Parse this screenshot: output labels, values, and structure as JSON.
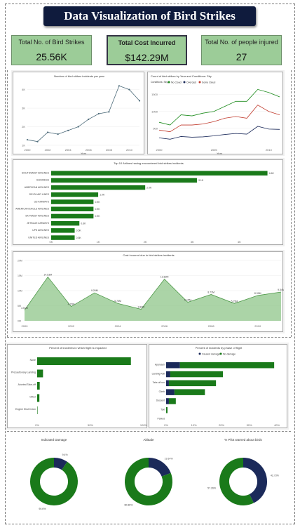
{
  "title": "Data Visualization of Bird Strikes",
  "kpis": [
    {
      "label": "Total No. of Bird Strikes",
      "value": "25.56K"
    },
    {
      "label": "Total Cost Incurred",
      "value": "$142.29M"
    },
    {
      "label": "Total No. of people injured",
      "value": "27"
    }
  ],
  "colors": {
    "header": "#0f1b3d",
    "kpi_bg": "#9ccc98",
    "green": "#1a7a1a",
    "navy": "#1b2a5a",
    "red": "#c0392b",
    "slate": "#4d6b7a",
    "area": "#8fc58a"
  },
  "chart_data": [
    {
      "id": "incidents_per_year",
      "type": "line",
      "title": "Number of bird strikes incidents per year",
      "xlabel": "Year",
      "ylabel": "",
      "x": [
        2000,
        2001,
        2002,
        2003,
        2004,
        2005,
        2006,
        2007,
        2008,
        2009,
        2010,
        2011
      ],
      "values": [
        1.3,
        1.2,
        1.7,
        1.6,
        1.8,
        2.0,
        2.4,
        2.7,
        2.8,
        4.2,
        4.0,
        3.4
      ],
      "xticks": [
        "2000",
        "2002",
        "2004",
        "2006",
        "2008",
        "2010"
      ],
      "yticks": [
        "1K",
        "2K",
        "3K",
        "4K"
      ],
      "ylim": [
        1,
        4.4
      ]
    },
    {
      "id": "by_conditions_sky",
      "type": "line",
      "title": "Count of bird strikes by Year and Conditions: Sky",
      "legend_title": "Conditions: Sky",
      "xlabel": "Year",
      "x": [
        2000,
        2001,
        2002,
        2003,
        2004,
        2005,
        2006,
        2007,
        2008,
        2009,
        2010,
        2011
      ],
      "xticks": [
        "2000",
        "2005",
        "2010"
      ],
      "yticks": [
        "500",
        "1000",
        "1500"
      ],
      "ylim": [
        0,
        1700
      ],
      "series": [
        {
          "name": "No Cloud",
          "color": "#1a8a1a",
          "values": [
            680,
            600,
            900,
            870,
            950,
            1000,
            1150,
            1300,
            1300,
            1650,
            1560,
            1430
          ]
        },
        {
          "name": "Overcast",
          "color": "#1b2a5a",
          "values": [
            220,
            180,
            260,
            240,
            250,
            280,
            320,
            350,
            330,
            560,
            480,
            470
          ]
        },
        {
          "name": "Some Cloud",
          "color": "#c0392b",
          "values": [
            450,
            400,
            600,
            600,
            630,
            700,
            800,
            850,
            800,
            1190,
            1000,
            900
          ]
        }
      ]
    },
    {
      "id": "top_airlines",
      "type": "bar",
      "title": "Top 10 Airlines having encountered bird strikes incidents",
      "categories": [
        "SOUTHWEST AIRLINES",
        "BUSINESS",
        "AMERICAN AIRLINES",
        "DELTA AIR LINES",
        "US AIRWAYS",
        "AMERICAN EAGLE AIRLINES",
        "SKYWEST AIRLINES",
        "JETBLUE AIRWAYS",
        "UPS AIRLINES",
        "UNITED AIRLINES"
      ],
      "values": [
        4.6,
        3.1,
        2.0,
        1.0,
        0.9,
        0.9,
        0.9,
        0.6,
        0.5,
        0.5
      ],
      "labels": [
        "4.6K",
        "3.1K",
        "2.0K",
        "1.0K",
        "0.9K",
        "0.9K",
        "0.9K",
        "0.6K",
        "0.5K",
        "0.5K"
      ],
      "xticks": [
        "0K",
        "1K",
        "2K",
        "3K",
        "4K"
      ],
      "xlim": [
        0,
        4.8
      ]
    },
    {
      "id": "cost_by_year",
      "type": "area",
      "title": "Cost incurred due to bird strikes incidents",
      "x": [
        2000,
        2001,
        2002,
        2003,
        2004,
        2005,
        2006,
        2007,
        2008,
        2009,
        2010,
        2011
      ],
      "values": [
        3.51,
        14.53,
        4.73,
        9.26,
        5.76,
        3.83,
        13.82,
        6.15,
        8.73,
        5.75,
        8.39,
        9.54
      ],
      "labels": [
        "3.51M",
        "14.53M",
        "4.73M",
        "9.26M",
        "5.76M",
        "3.83M",
        "13.82M",
        "6.15M",
        "8.73M",
        "5.75M",
        "8.39M",
        "9.54M"
      ],
      "xticks": [
        "2000",
        "2002",
        "2004",
        "2006",
        "2008",
        "2010"
      ],
      "yticks": [
        "0M",
        "5M",
        "10M",
        "15M",
        "20M"
      ],
      "ylim": [
        0,
        20
      ]
    },
    {
      "id": "flight_impact",
      "type": "bar",
      "title": "Percent of incidents in which flight is impacted",
      "categories": [
        "None",
        "Precautionary Landing",
        "Aborted Take-off",
        "Other",
        "Engine Shut Down"
      ],
      "values": [
        88,
        5.5,
        2.4,
        2.1,
        0.2
      ],
      "xticks": [
        "0%",
        "50%",
        "100%"
      ],
      "xlim": [
        0,
        100
      ]
    },
    {
      "id": "phase_of_flight",
      "type": "bar",
      "title": "Percent of incidents by phase of flight",
      "legend": [
        "Caused damage",
        "No damage"
      ],
      "categories": [
        "Approach",
        "Landing Roll",
        "Take-off run",
        "Climb",
        "Descent",
        "Taxi",
        "Parked"
      ],
      "series": [
        {
          "name": "Caused damage",
          "color": "#1b2a5a",
          "values": [
            5,
            1.5,
            1,
            3,
            1,
            0,
            0
          ]
        },
        {
          "name": "No damage",
          "color": "#1a7a1a",
          "values": [
            34,
            19,
            17,
            11,
            2.5,
            0.5,
            0
          ]
        }
      ],
      "xticks": [
        "0%",
        "10%",
        "20%",
        "30%",
        "40%"
      ],
      "xlim": [
        0,
        42
      ]
    },
    {
      "id": "indicated_damage",
      "type": "pie",
      "title": "Indicated Damage",
      "slices": [
        {
          "label": "9.4%",
          "value": 9.4,
          "color": "#1b2a5a"
        },
        {
          "label": "90.6%",
          "value": 90.6,
          "color": "#1a7a1a"
        }
      ]
    },
    {
      "id": "altitude",
      "type": "pie",
      "title": "Altitude",
      "slices": [
        {
          "label": "19.14%",
          "value": 19.14,
          "color": "#1b2a5a"
        },
        {
          "label": "80.86%",
          "value": 80.86,
          "color": "#1a7a1a"
        }
      ]
    },
    {
      "id": "pilot_warned",
      "type": "pie",
      "title": "% Pilot warned about birds",
      "slices": [
        {
          "label": "42.73%",
          "value": 42.73,
          "color": "#1b2a5a"
        },
        {
          "label": "57.26%",
          "value": 57.26,
          "color": "#1a7a1a"
        }
      ]
    }
  ]
}
